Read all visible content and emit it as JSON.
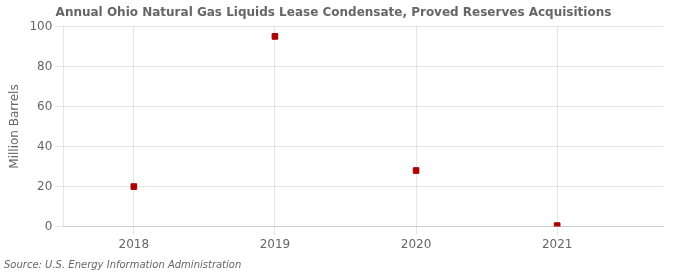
{
  "chart_data": {
    "type": "scatter",
    "title": "Annual Ohio Natural Gas Liquids Lease Condensate, Proved Reserves Acquisitions",
    "ylabel": "Million Barrels",
    "annotations": [
      "Source: U.S. Energy Information Administration"
    ],
    "x": [
      2018,
      2019,
      2020,
      2021
    ],
    "values": [
      20,
      95,
      28,
      0.5
    ],
    "xlim": [
      2017.5,
      2021.75
    ],
    "ylim": [
      0,
      100
    ],
    "xticks": [
      2018,
      2019,
      2020,
      2021
    ],
    "yticks": [
      0,
      20,
      40,
      60,
      80,
      100
    ],
    "grid": true,
    "color": "#aa0000",
    "marker": "square"
  }
}
